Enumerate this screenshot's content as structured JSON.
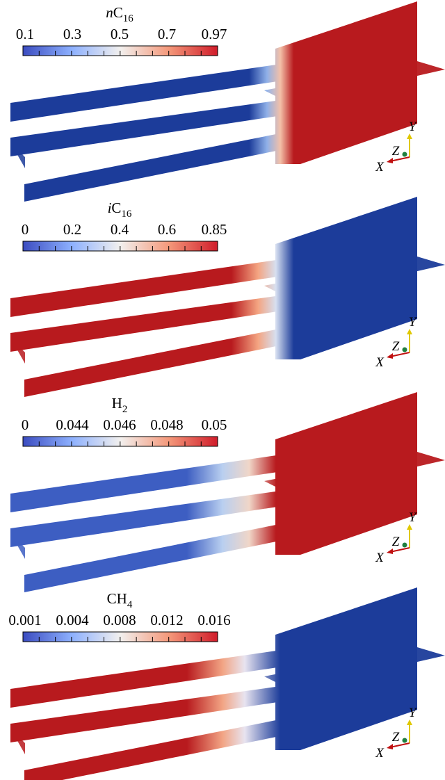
{
  "panels": [
    {
      "title": {
        "italic": "n",
        "base": "C",
        "sub": "16"
      },
      "ticks": [
        "0.1",
        "0.3",
        "0.5",
        "0.7",
        "0.97"
      ]
    },
    {
      "title": {
        "italic": "i",
        "base": "C",
        "sub": "16"
      },
      "ticks": [
        "0",
        "0.2",
        "0.4",
        "0.6",
        "0.85"
      ]
    },
    {
      "title": {
        "base": "H",
        "sub": "2"
      },
      "ticks": [
        "0",
        "0.044",
        "0.046",
        "0.048",
        "0.05"
      ]
    },
    {
      "title": {
        "base": "CH",
        "sub": "4"
      },
      "ticks": [
        "0.001",
        "0.004",
        "0.008",
        "0.012",
        "0.016"
      ]
    }
  ],
  "axes": {
    "x": "X",
    "y": "Y",
    "z": "Z"
  }
}
